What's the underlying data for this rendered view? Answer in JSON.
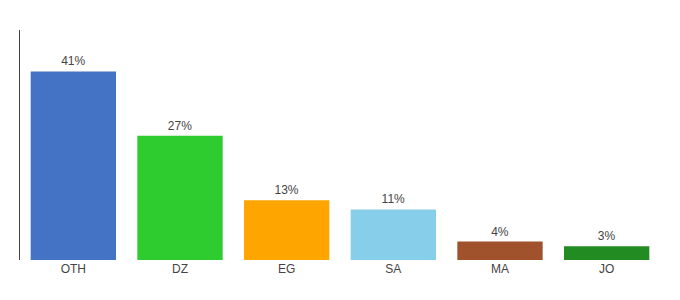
{
  "chart_data": {
    "type": "bar",
    "categories": [
      "OTH",
      "DZ",
      "EG",
      "SA",
      "MA",
      "JO"
    ],
    "values": [
      41,
      27,
      13,
      11,
      4,
      3
    ],
    "value_labels": [
      "41%",
      "27%",
      "13%",
      "11%",
      "4%",
      "3%"
    ],
    "data_labels": true,
    "colors": [
      "#4472C4",
      "#2ECC2E",
      "#FFA500",
      "#87CEEB",
      "#A0522D",
      "#228B22"
    ],
    "ylim": [
      0,
      50
    ],
    "grid": false,
    "tick_labels": "x"
  }
}
